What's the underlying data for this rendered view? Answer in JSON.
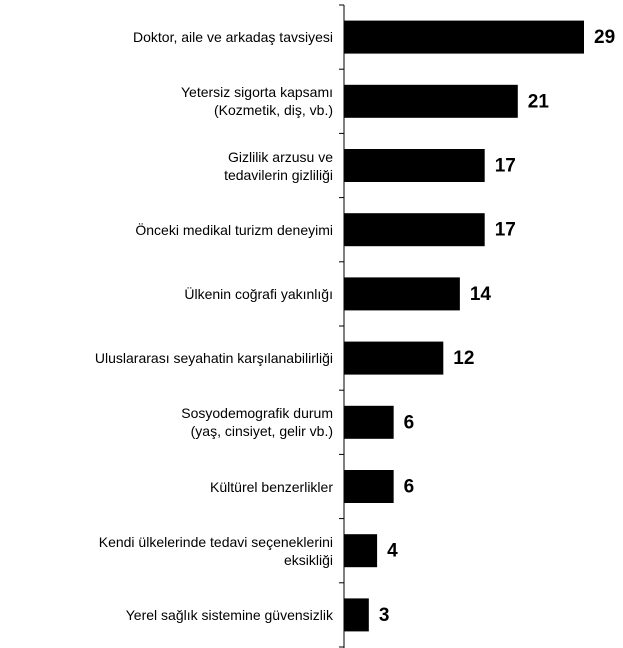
{
  "chart_data": {
    "type": "bar",
    "orientation": "horizontal",
    "categories": [
      "Doktor, aile ve arkadaş tavsiyesi",
      "Yetersiz sigorta kapsamı\n(Kozmetik, diş, vb.)",
      "Gizlilik arzusu ve\ntedavilerin gizliliği",
      "Önceki medikal turizm deneyimi",
      "Ülkenin coğrafi yakınlığı",
      "Uluslararası seyahatin karşılanabilirliği",
      "Sosyodemografik durum\n(yaş, cinsiyet, gelir vb.)",
      "Kültürel benzerlikler",
      "Kendi ülkelerinde tedavi seçeneklerini\neksikliği",
      "Yerel sağlık sistemine güvensizlik"
    ],
    "values": [
      29,
      21,
      17,
      17,
      14,
      12,
      6,
      6,
      4,
      3
    ],
    "color": "#000000"
  }
}
